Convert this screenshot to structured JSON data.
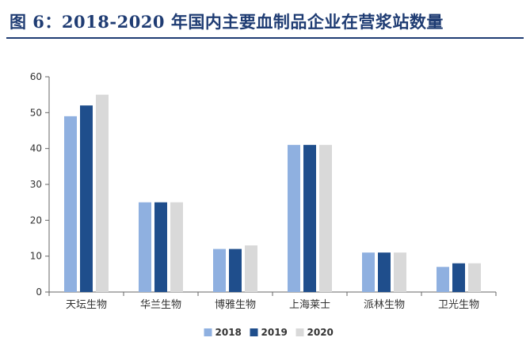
{
  "header": {
    "title": "图 6：2018-2020 年国内主要血制品企业在营浆站数量"
  },
  "chart_data": {
    "type": "bar",
    "title": "",
    "xlabel": "",
    "ylabel": "",
    "categories": [
      "天坛生物",
      "华兰生物",
      "博雅生物",
      "上海莱士",
      "派林生物",
      "卫光生物"
    ],
    "series": [
      {
        "name": "2018",
        "color": "#8fb0e0",
        "values": [
          49,
          25,
          12,
          41,
          11,
          7
        ]
      },
      {
        "name": "2019",
        "color": "#1f4e8c",
        "values": [
          52,
          25,
          12,
          41,
          11,
          8
        ]
      },
      {
        "name": "2020",
        "color": "#d9d9d9",
        "values": [
          55,
          25,
          13,
          41,
          11,
          8
        ]
      }
    ],
    "ylim": [
      0,
      60
    ],
    "yticks": [
      0,
      10,
      20,
      30,
      40,
      50,
      60
    ],
    "grid": false,
    "legend_position": "bottom-center"
  }
}
